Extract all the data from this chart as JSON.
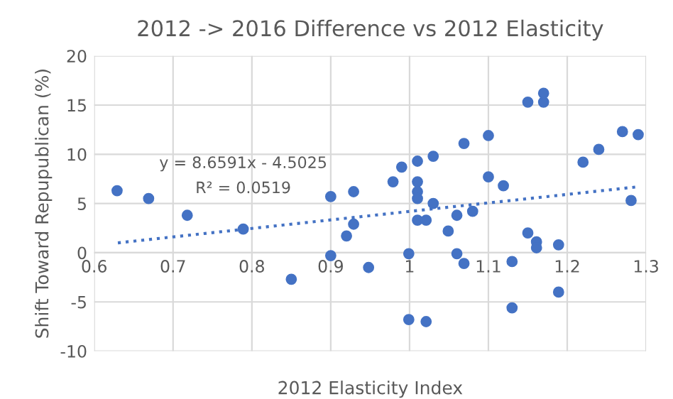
{
  "chart_data": {
    "type": "scatter",
    "title": "2012 -> 2016 Difference vs 2012 Elasticity",
    "xlabel": "2012 Elasticity Index",
    "ylabel": "Shift Toward Repupublican (%)",
    "annotations": [
      "y = 8.6591x - 4.5025",
      "R² = 0.0519"
    ],
    "xlim": [
      0.6,
      1.3
    ],
    "xticks": [
      0.6,
      0.7,
      0.8,
      0.9,
      1,
      1.1,
      1.2,
      1.3
    ],
    "ylim": [
      -10,
      20
    ],
    "yticks": [
      -10,
      -5,
      0,
      5,
      10,
      15,
      20
    ],
    "grid": true,
    "legend": false,
    "series": [
      {
        "type": "scatter",
        "color": "#4472c4",
        "marker": "circle",
        "x": [
          0.629,
          0.669,
          0.718,
          0.789,
          0.85,
          0.9,
          0.929,
          0.929,
          0.92,
          0.9,
          0.948,
          0.979,
          0.99,
          1.01,
          1.03,
          1.01,
          1.01,
          1.01,
          1.03,
          1.01,
          1.021,
          0.999,
          0.999,
          1.021,
          1.049,
          1.06,
          1.06,
          1.069,
          1.069,
          1.08,
          1.1,
          1.1,
          1.119,
          1.13,
          1.13,
          1.15,
          1.17,
          1.17,
          1.15,
          1.161,
          1.161,
          1.189,
          1.189,
          1.22,
          1.24,
          1.27,
          1.29,
          1.281
        ],
        "values": [
          6.3,
          5.5,
          3.8,
          2.4,
          -2.7,
          5.7,
          6.2,
          2.9,
          1.7,
          -0.3,
          -1.5,
          7.2,
          8.7,
          9.3,
          9.8,
          7.2,
          6.2,
          5.5,
          5,
          3.3,
          3.3,
          -0.1,
          -6.8,
          -7,
          2.2,
          3.8,
          -0.1,
          -1.1,
          11.1,
          4.2,
          11.9,
          7.7,
          6.8,
          -0.9,
          -5.6,
          15.3,
          15.3,
          16.2,
          2,
          1.1,
          0.5,
          0.8,
          -4,
          9.2,
          10.5,
          12.3,
          12,
          5.3
        ]
      },
      {
        "type": "line",
        "color": "#4472c4",
        "line_style": "dotted",
        "marker": "none",
        "x": [
          0.63,
          1.29
        ],
        "values": [
          1,
          6.7
        ]
      }
    ]
  }
}
